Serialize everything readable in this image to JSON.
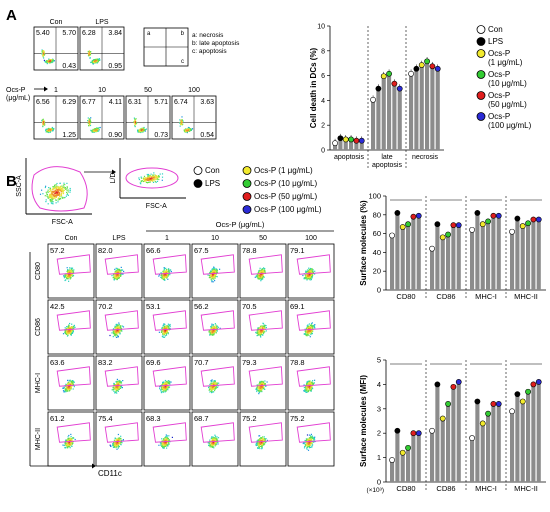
{
  "panel_a": {
    "letter": "A",
    "top_labels": [
      "Con",
      "LPS"
    ],
    "top_plots": [
      {
        "q": [
          "5.40",
          "5.70",
          "0.43"
        ]
      },
      {
        "q": [
          "6.28",
          "3.84",
          "0.95"
        ]
      }
    ],
    "quadrant_key": {
      "a": "a",
      "b": "b",
      "c": "c"
    },
    "key_legend": [
      "a: necrosis",
      "b: late apoptosis",
      "c: apoptosis"
    ],
    "ocs_label_1": "Ocs-P",
    "ocs_label_2": "(μg/mL)",
    "doses": [
      "1",
      "10",
      "50",
      "100"
    ],
    "dose_plots": [
      {
        "q": [
          "6.56",
          "6.29",
          "1.25"
        ]
      },
      {
        "q": [
          "6.77",
          "4.11",
          "0.90"
        ]
      },
      {
        "q": [
          "6.31",
          "5.71",
          "0.73"
        ]
      },
      {
        "q": [
          "6.74",
          "3.63",
          "0.54"
        ]
      }
    ],
    "bar_ylabel": "Cell death in DCs (%)",
    "bar_yticks": [
      "0",
      "2",
      "4",
      "6",
      "8",
      "10"
    ],
    "bar_groups": [
      "apoptosis",
      "late",
      "apoptosis",
      "necrosis"
    ],
    "legend": [
      "Con",
      "LPS",
      "Ocs-P",
      "(1 μg/mL)",
      "Ocs-P",
      "(10 μg/mL)",
      "Ocs-P",
      "(50 μg/mL)",
      "Ocs-P",
      "(100 μg/mL)"
    ]
  },
  "panel_b": {
    "letter": "B",
    "gating": {
      "ssc": "SSC-A",
      "fsc1": "FSC-A",
      "ld": "L/D",
      "fsc2": "FSC-A"
    },
    "legend": [
      "Con",
      "LPS",
      "Ocs-P (1 μg/mL)",
      "Ocs-P (10 μg/mL)",
      "Ocs-P (50 μg/mL)",
      "Ocs-P (100 μg/mL)"
    ],
    "col_labels": [
      "Con",
      "LPS",
      "1",
      "10",
      "50",
      "100"
    ],
    "ocs_header": "Ocs-P (μg/mL)",
    "row_labels": [
      "CD80",
      "CD86",
      "MHC-I",
      "MHC-II"
    ],
    "xaxis_label": "CD11c",
    "values": [
      [
        "57.2",
        "82.0",
        "66.6",
        "67.5",
        "78.8",
        "79.1"
      ],
      [
        "42.5",
        "70.2",
        "53.1",
        "56.2",
        "70.5",
        "69.1"
      ],
      [
        "63.6",
        "83.2",
        "69.6",
        "70.7",
        "79.3",
        "78.8"
      ],
      [
        "61.2",
        "75.4",
        "68.3",
        "68.7",
        "75.2",
        "75.2"
      ]
    ],
    "pct_ylabel": "Surface molecules (%)",
    "pct_yticks": [
      "0",
      "20",
      "40",
      "60",
      "80",
      "100"
    ],
    "mfi_ylabel": "Surface molecules (MFI)",
    "mfi_yticks": [
      "0",
      "1",
      "2",
      "3",
      "4",
      "5"
    ],
    "mfi_unit": "(×10³)",
    "groups": [
      "CD80",
      "CD86",
      "MHC-I",
      "MHC-II"
    ]
  },
  "chart_data": [
    {
      "type": "bar",
      "ylabel": "Cell death in DCs (%)",
      "ylim": [
        0,
        10
      ],
      "categories": [
        "apoptosis",
        "late apoptosis",
        "necrosis"
      ],
      "series": [
        {
          "name": "Con",
          "values": [
            0.4,
            3.9,
            6.0
          ]
        },
        {
          "name": "LPS",
          "values": [
            0.8,
            4.8,
            6.4
          ]
        },
        {
          "name": "Ocs-P (1 μg/mL)",
          "values": [
            0.7,
            5.8,
            6.7
          ]
        },
        {
          "name": "Ocs-P (10 μg/mL)",
          "values": [
            0.7,
            6.0,
            7.0
          ]
        },
        {
          "name": "Ocs-P (50 μg/mL)",
          "values": [
            0.6,
            5.2,
            6.6
          ]
        },
        {
          "name": "Ocs-P (100 μg/mL)",
          "values": [
            0.6,
            4.8,
            6.4
          ]
        }
      ]
    },
    {
      "type": "bar",
      "ylabel": "Surface molecules (%)",
      "ylim": [
        0,
        100
      ],
      "categories": [
        "CD80",
        "CD86",
        "MHC-I",
        "MHC-II"
      ],
      "series": [
        {
          "name": "Con",
          "values": [
            58,
            44,
            64,
            62
          ]
        },
        {
          "name": "LPS",
          "values": [
            82,
            70,
            82,
            76
          ]
        },
        {
          "name": "Ocs-P (1 μg/mL)",
          "values": [
            67,
            56,
            70,
            68
          ]
        },
        {
          "name": "Ocs-P (10 μg/mL)",
          "values": [
            70,
            59,
            73,
            71
          ]
        },
        {
          "name": "Ocs-P (50 μg/mL)",
          "values": [
            78,
            69,
            79,
            75
          ]
        },
        {
          "name": "Ocs-P (100 μg/mL)",
          "values": [
            79,
            69,
            79,
            75
          ]
        }
      ]
    },
    {
      "type": "bar",
      "ylabel": "Surface molecules (MFI)",
      "ylim": [
        0,
        5
      ],
      "categories": [
        "CD80",
        "CD86",
        "MHC-I",
        "MHC-II"
      ],
      "series": [
        {
          "name": "Con",
          "values": [
            0.9,
            2.1,
            1.8,
            2.9
          ]
        },
        {
          "name": "LPS",
          "values": [
            2.1,
            4.0,
            3.3,
            3.6
          ]
        },
        {
          "name": "Ocs-P (1 μg/mL)",
          "values": [
            1.2,
            2.6,
            2.4,
            3.3
          ]
        },
        {
          "name": "Ocs-P (10 μg/mL)",
          "values": [
            1.4,
            3.2,
            2.8,
            3.7
          ]
        },
        {
          "name": "Ocs-P (50 μg/mL)",
          "values": [
            2.0,
            3.9,
            3.2,
            4.0
          ]
        },
        {
          "name": "Ocs-P (100 μg/mL)",
          "values": [
            2.0,
            4.1,
            3.2,
            4.1
          ]
        }
      ]
    }
  ],
  "colors": {
    "con": "#ffffff",
    "lps": "#000000",
    "p1": "#f2ea2e",
    "p10": "#33cc33",
    "p50": "#e01e1e",
    "p100": "#2b2bd6",
    "bar": "#8c8c8c",
    "gate": "#e23fd2"
  }
}
